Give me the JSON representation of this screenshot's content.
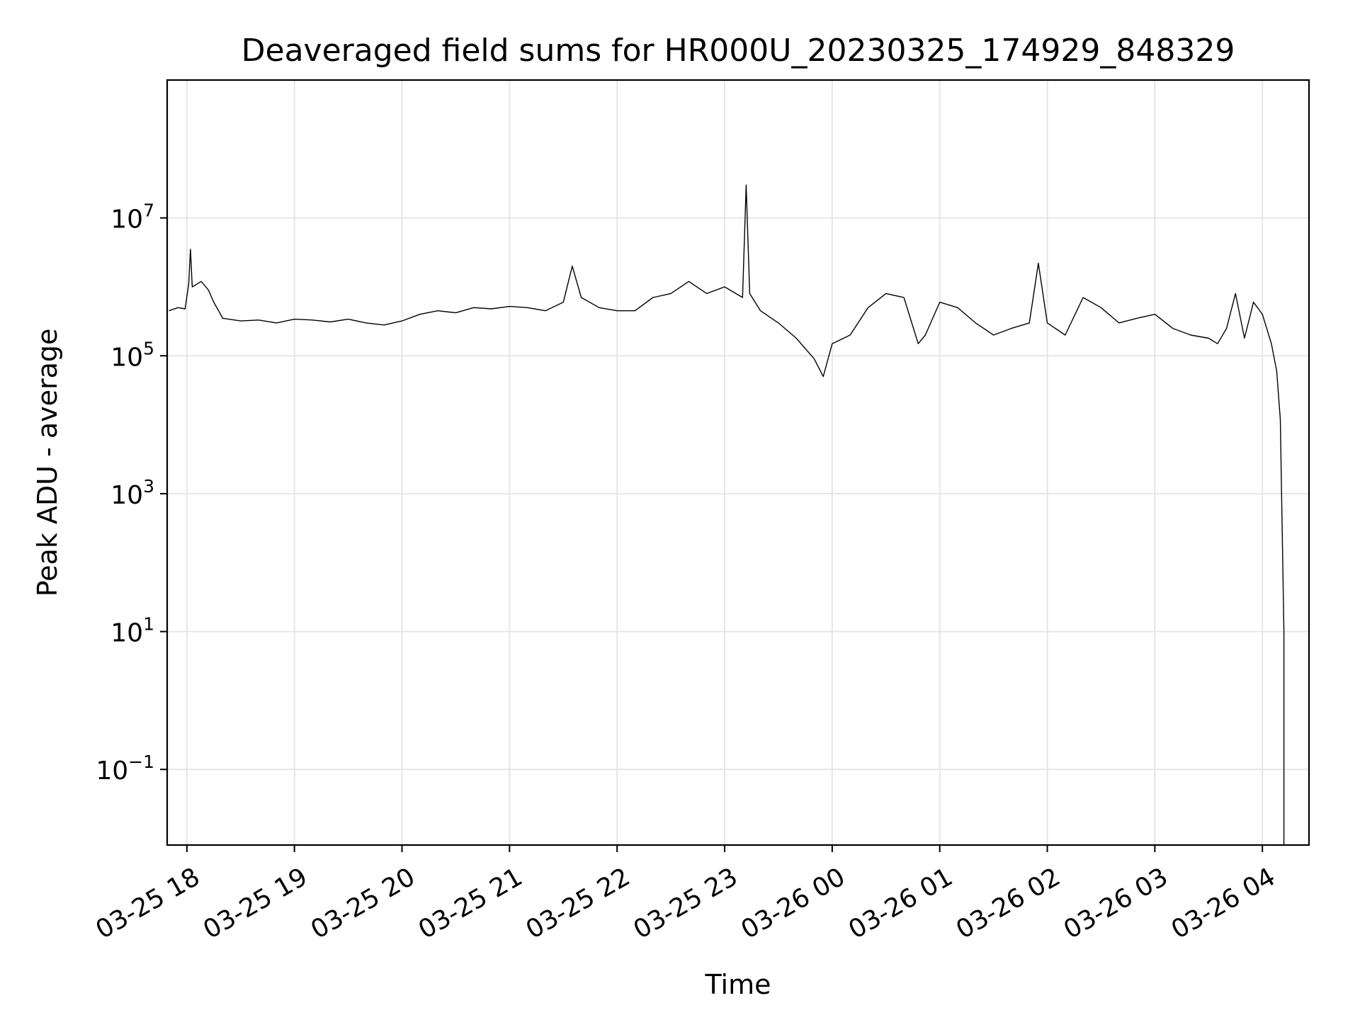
{
  "chart_data": {
    "type": "line",
    "title": "Deaveraged field sums for HR000U_20230325_174929_848329",
    "xlabel": "Time",
    "ylabel": "Peak ADU - average",
    "yscale": "log",
    "xlim": [
      "03-25 17:49",
      "03-26 04:26"
    ],
    "ylim": [
      0.008,
      1000000000
    ],
    "grid": true,
    "line_color": "#000000",
    "x_ticks": [
      "03-25 18",
      "03-25 19",
      "03-25 20",
      "03-25 21",
      "03-25 22",
      "03-25 23",
      "03-26 00",
      "03-26 01",
      "03-26 02",
      "03-26 03",
      "03-26 04"
    ],
    "y_ticks": [
      {
        "base": "10",
        "exp": "−1",
        "value": 0.1
      },
      {
        "base": "10",
        "exp": "1",
        "value": 10
      },
      {
        "base": "10",
        "exp": "3",
        "value": 1000
      },
      {
        "base": "10",
        "exp": "5",
        "value": 100000
      },
      {
        "base": "10",
        "exp": "7",
        "value": 10000000
      }
    ],
    "series": [
      {
        "points": [
          [
            "03-25 17:50",
            450000
          ],
          [
            "03-25 17:55",
            500000
          ],
          [
            "03-25 17:59",
            480000
          ],
          [
            "03-25 18:01",
            1100000
          ],
          [
            "03-25 18:02",
            3500000
          ],
          [
            "03-25 18:03",
            1000000
          ],
          [
            "03-25 18:08",
            1200000
          ],
          [
            "03-25 18:12",
            900000
          ],
          [
            "03-25 18:15",
            600000
          ],
          [
            "03-25 18:20",
            350000
          ],
          [
            "03-25 18:30",
            320000
          ],
          [
            "03-25 18:40",
            330000
          ],
          [
            "03-25 18:50",
            300000
          ],
          [
            "03-25 19:00",
            340000
          ],
          [
            "03-25 19:10",
            330000
          ],
          [
            "03-25 19:20",
            310000
          ],
          [
            "03-25 19:30",
            340000
          ],
          [
            "03-25 19:40",
            300000
          ],
          [
            "03-25 19:50",
            280000
          ],
          [
            "03-25 20:00",
            320000
          ],
          [
            "03-25 20:10",
            400000
          ],
          [
            "03-25 20:20",
            450000
          ],
          [
            "03-25 20:30",
            420000
          ],
          [
            "03-25 20:40",
            500000
          ],
          [
            "03-25 20:50",
            480000
          ],
          [
            "03-25 21:00",
            520000
          ],
          [
            "03-25 21:10",
            500000
          ],
          [
            "03-25 21:20",
            450000
          ],
          [
            "03-25 21:30",
            600000
          ],
          [
            "03-25 21:35",
            2000000
          ],
          [
            "03-25 21:40",
            700000
          ],
          [
            "03-25 21:50",
            500000
          ],
          [
            "03-25 22:00",
            450000
          ],
          [
            "03-25 22:10",
            450000
          ],
          [
            "03-25 22:20",
            700000
          ],
          [
            "03-25 22:30",
            800000
          ],
          [
            "03-25 22:40",
            1200000
          ],
          [
            "03-25 22:50",
            800000
          ],
          [
            "03-25 23:00",
            1000000
          ],
          [
            "03-25 23:10",
            700000
          ],
          [
            "03-25 23:12",
            30000000
          ],
          [
            "03-25 23:14",
            800000
          ],
          [
            "03-25 23:20",
            450000
          ],
          [
            "03-25 23:30",
            300000
          ],
          [
            "03-25 23:40",
            180000
          ],
          [
            "03-25 23:50",
            90000
          ],
          [
            "03-25 23:55",
            50000
          ],
          [
            "03-26 00:00",
            150000
          ],
          [
            "03-26 00:10",
            200000
          ],
          [
            "03-26 00:20",
            500000
          ],
          [
            "03-26 00:30",
            800000
          ],
          [
            "03-26 00:40",
            700000
          ],
          [
            "03-26 00:48",
            150000
          ],
          [
            "03-26 00:52",
            200000
          ],
          [
            "03-26 01:00",
            600000
          ],
          [
            "03-26 01:10",
            500000
          ],
          [
            "03-26 01:20",
            300000
          ],
          [
            "03-26 01:30",
            200000
          ],
          [
            "03-26 01:40",
            250000
          ],
          [
            "03-26 01:50",
            300000
          ],
          [
            "03-26 01:55",
            2200000
          ],
          [
            "03-26 02:00",
            300000
          ],
          [
            "03-26 02:10",
            200000
          ],
          [
            "03-26 02:20",
            700000
          ],
          [
            "03-26 02:30",
            500000
          ],
          [
            "03-26 02:40",
            300000
          ],
          [
            "03-26 02:50",
            350000
          ],
          [
            "03-26 03:00",
            400000
          ],
          [
            "03-26 03:10",
            250000
          ],
          [
            "03-26 03:20",
            200000
          ],
          [
            "03-26 03:30",
            180000
          ],
          [
            "03-26 03:35",
            150000
          ],
          [
            "03-26 03:40",
            250000
          ],
          [
            "03-26 03:45",
            800000
          ],
          [
            "03-26 03:50",
            180000
          ],
          [
            "03-26 03:55",
            600000
          ],
          [
            "03-26 04:00",
            400000
          ],
          [
            "03-26 04:05",
            150000
          ],
          [
            "03-26 04:08",
            60000
          ],
          [
            "03-26 04:10",
            12000
          ],
          [
            "03-26 04:12",
            10
          ]
        ]
      }
    ]
  }
}
